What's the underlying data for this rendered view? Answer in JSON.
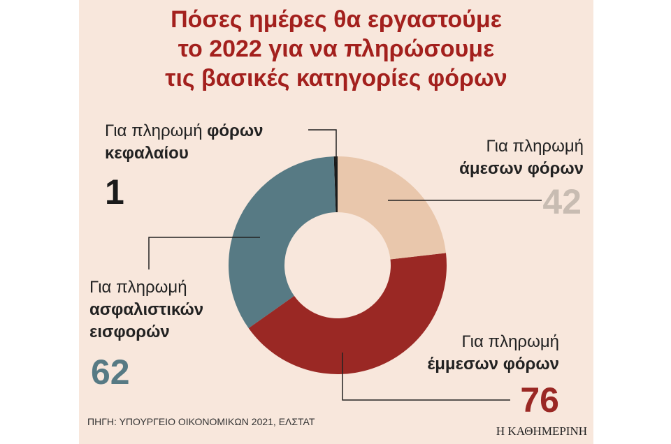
{
  "chart_data": {
    "type": "donut",
    "title": [
      "Πόσες ημέρες θα εργαστούμε",
      "το 2022 για να πληρώσουμε",
      "τις βασικές κατηγορίες φόρων"
    ],
    "category_prefix": "Για πληρωμή",
    "categories": [
      "άμεσων φόρων",
      "έμμεσων φόρων",
      "ασφαλιστικών εισφορών",
      "φόρων κεφαλαίου"
    ],
    "values": [
      42,
      76,
      62,
      1
    ],
    "colors": [
      "#e9c7ac",
      "#9a2824",
      "#577a84",
      "#1b1b1b"
    ],
    "value_colors": [
      "#c8bcb2",
      "#9a2824",
      "#577a84",
      "#1b1b1b"
    ],
    "source": "ΠΗΓΗ: ΥΠΟΥΡΓΕΙΟ ΟΙΚΟΝΟΜΙΚΩΝ 2021, ΕΛΣΤΑΤ",
    "brand": "Η ΚΑΘΗΜΕΡΙΝΗ"
  }
}
